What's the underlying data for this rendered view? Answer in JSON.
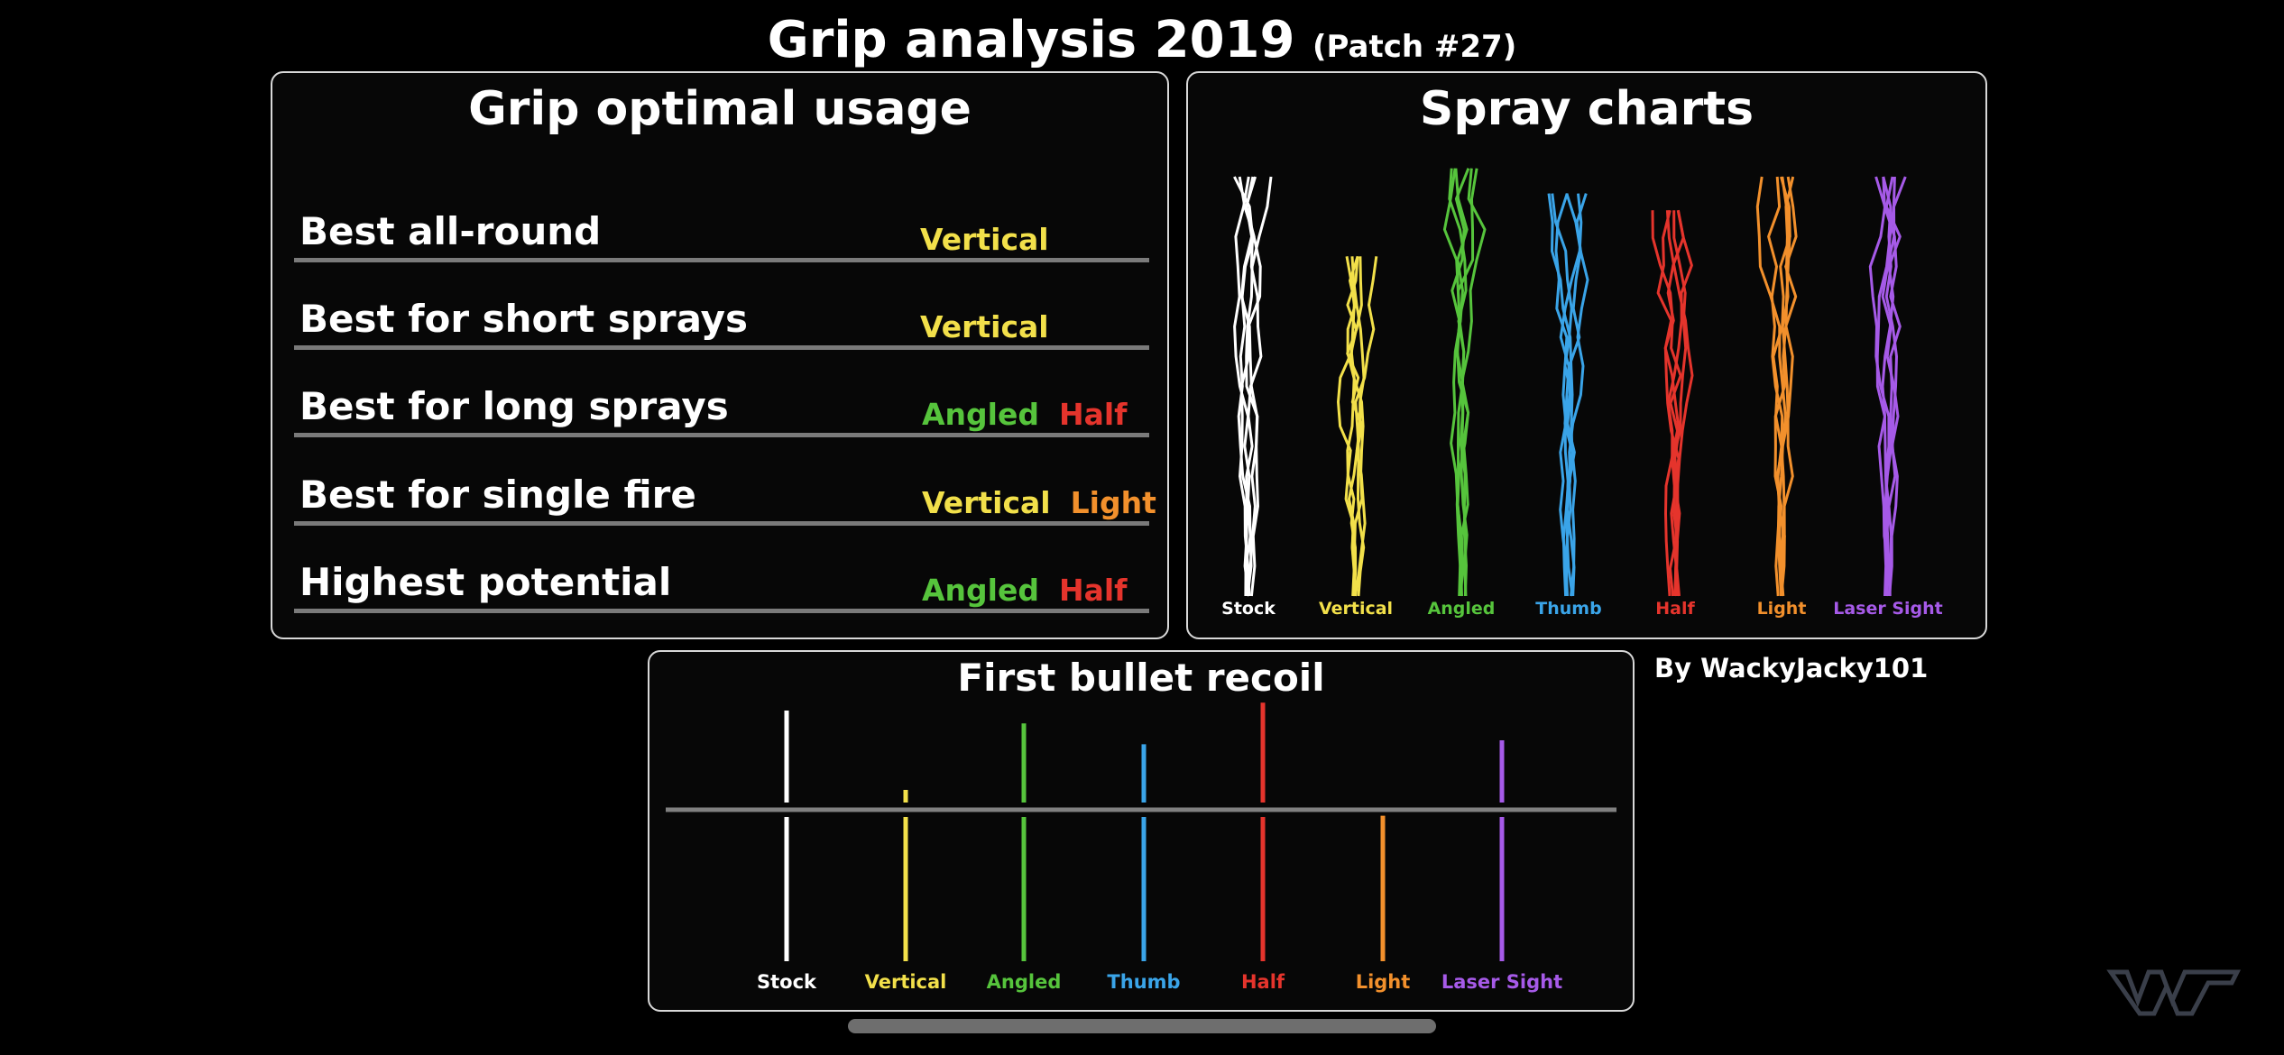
{
  "header": {
    "title": "Grip analysis 2019",
    "subtitle": "(Patch #27)"
  },
  "usage": {
    "title": "Grip optimal usage",
    "rows": [
      {
        "label": "Best all-round",
        "values": [
          {
            "text": "Vertical",
            "color": "#f2e04a"
          }
        ]
      },
      {
        "label": "Best for short sprays",
        "values": [
          {
            "text": "Vertical",
            "color": "#f2e04a"
          }
        ]
      },
      {
        "label": "Best for long sprays",
        "values": [
          {
            "text": "Angled",
            "color": "#56c43c"
          },
          {
            "text": "Half",
            "color": "#e5342c"
          }
        ]
      },
      {
        "label": "Best for single fire",
        "values": [
          {
            "text": "Vertical",
            "color": "#f2e04a"
          },
          {
            "text": "Light",
            "color": "#f2902c"
          }
        ]
      },
      {
        "label": "Highest potential",
        "values": [
          {
            "text": "Angled",
            "color": "#56c43c"
          },
          {
            "text": "Half",
            "color": "#e5342c"
          }
        ]
      }
    ]
  },
  "spray": {
    "title": "Spray charts"
  },
  "recoil": {
    "title": "First bullet recoil"
  },
  "grips": [
    {
      "name": "Stock",
      "color": "#ffffff"
    },
    {
      "name": "Vertical",
      "color": "#f2e04a"
    },
    {
      "name": "Angled",
      "color": "#56c43c"
    },
    {
      "name": "Thumb",
      "color": "#3aa4e8"
    },
    {
      "name": "Half",
      "color": "#e5342c"
    },
    {
      "name": "Light",
      "color": "#f2902c"
    },
    {
      "name": "Laser Sight",
      "color": "#a65ae8"
    }
  ],
  "chart_data": [
    {
      "type": "line",
      "title": "Spray charts",
      "series_names": [
        "Stock",
        "Vertical",
        "Angled",
        "Thumb",
        "Half",
        "Light",
        "Laser Sight"
      ],
      "relative_spray_height": [
        1.0,
        0.81,
        1.02,
        0.96,
        0.92,
        1.0,
        1.0
      ]
    },
    {
      "type": "bar",
      "title": "First bullet recoil",
      "categories": [
        "Stock",
        "Vertical",
        "Angled",
        "Thumb",
        "Half",
        "Light",
        "Laser Sight"
      ],
      "values": [
        1.0,
        0.2,
        0.87,
        0.66,
        1.08,
        -0.06,
        0.7
      ],
      "baseline": 0
    }
  ],
  "author": "By WackyJacky101"
}
